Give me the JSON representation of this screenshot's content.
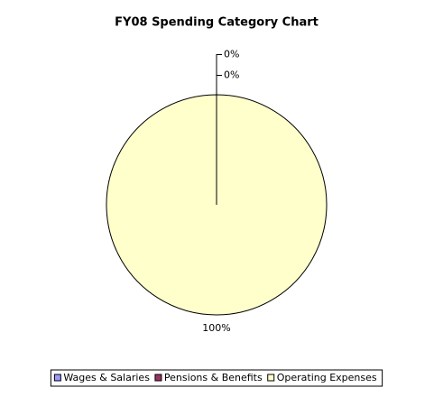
{
  "chart_data": {
    "type": "pie",
    "title": "FY08 Spending Category Chart",
    "categories": [
      "Wages & Salaries",
      "Pensions & Benefits",
      "Operating Expenses"
    ],
    "values": [
      0,
      0,
      100
    ],
    "value_labels": [
      "0%",
      "0%",
      "100%"
    ],
    "colors": [
      "#9999ff",
      "#993366",
      "#ffffcc"
    ],
    "legend": "bottom"
  }
}
